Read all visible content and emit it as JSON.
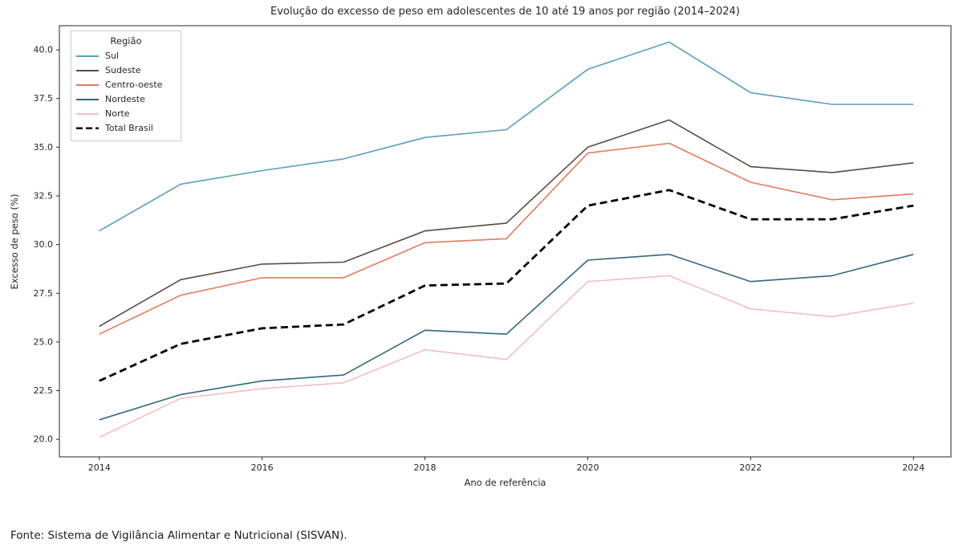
{
  "title": "Evolução do excesso de peso em adolescentes de 10 até 19 anos por região (2014–2024)",
  "source_note": "Fonte: Sistema de Vigilância Alimentar e Nutricional (SISVAN).",
  "colors": {
    "background": "#ffffff",
    "spine": "#262626",
    "text": "#262626",
    "legend_border": "#cccccc"
  },
  "chart_data": {
    "type": "line",
    "title": "Evolução do excesso de peso em adolescentes de 10 até 19 anos por região (2014–2024)",
    "xlabel": "Ano de referência",
    "ylabel": "Excesso de peso (%)",
    "legend_title": "Região",
    "legend_position": "upper-left",
    "grid": false,
    "x": [
      2014,
      2015,
      2016,
      2017,
      2018,
      2019,
      2020,
      2021,
      2022,
      2023,
      2024
    ],
    "xticks": [
      2014,
      2016,
      2018,
      2020,
      2022,
      2024
    ],
    "yticks": [
      20.0,
      22.5,
      25.0,
      27.5,
      30.0,
      32.5,
      35.0,
      37.5,
      40.0
    ],
    "xlim": [
      2013.51,
      2024.46
    ],
    "ylim": [
      19.1,
      41.24
    ],
    "series": [
      {
        "name": "Sul",
        "color": "#5b9fb7",
        "style": "solid",
        "width": 1.6,
        "values": [
          30.7,
          33.1,
          33.8,
          34.4,
          35.5,
          35.9,
          39.0,
          40.4,
          37.8,
          37.2,
          37.2
        ]
      },
      {
        "name": "Sudeste",
        "color": "#5d4a45",
        "style": "solid",
        "width": 1.6,
        "values": [
          25.8,
          28.2,
          29.0,
          29.1,
          30.7,
          31.1,
          35.0,
          36.4,
          34.0,
          33.7,
          34.2
        ]
      },
      {
        "name": "Centro-oeste",
        "color": "#e07c5e",
        "style": "solid",
        "width": 1.6,
        "values": [
          25.4,
          27.4,
          28.3,
          28.3,
          30.1,
          30.3,
          34.7,
          35.2,
          33.2,
          32.3,
          32.6
        ]
      },
      {
        "name": "Nordeste",
        "color": "#336879",
        "style": "solid",
        "width": 1.6,
        "values": [
          21.0,
          22.3,
          23.0,
          23.3,
          25.6,
          25.4,
          29.2,
          29.5,
          28.1,
          28.4,
          29.5
        ]
      },
      {
        "name": "Norte",
        "color": "#f5bdc3",
        "style": "solid",
        "width": 1.6,
        "values": [
          20.1,
          22.1,
          22.6,
          22.9,
          24.6,
          24.1,
          28.1,
          28.4,
          26.7,
          26.3,
          27.0
        ]
      },
      {
        "name": "Total Brasil",
        "color": "#000000",
        "style": "dashed",
        "width": 2.8,
        "values": [
          23.0,
          24.9,
          25.7,
          25.9,
          27.9,
          28.0,
          32.0,
          32.8,
          31.3,
          31.3,
          32.0
        ]
      }
    ]
  }
}
